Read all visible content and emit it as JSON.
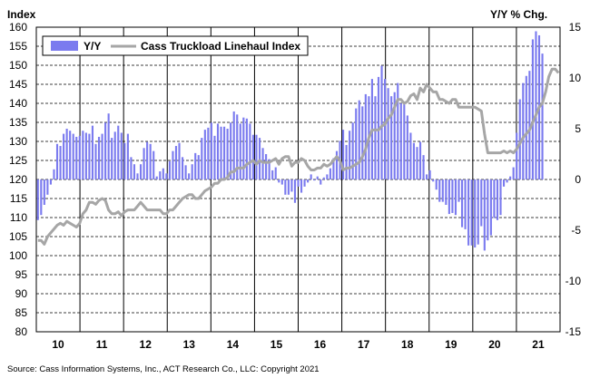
{
  "chart_data": {
    "type": "bar+line",
    "left_axis_title": "Index",
    "right_axis_title": "Y/Y % Chg.",
    "left_axis": {
      "min": 80,
      "max": 160,
      "ticks": [
        "160",
        "155",
        "150",
        "145",
        "140",
        "135",
        "130",
        "125",
        "120",
        "115",
        "110",
        "105",
        "100",
        "95",
        "90",
        "85",
        "80"
      ]
    },
    "right_axis": {
      "min": -15,
      "max": 15,
      "ticks": [
        "15",
        "10",
        "5",
        "0",
        "-5",
        "-10",
        "-15"
      ]
    },
    "x_year_labels": [
      "10",
      "11",
      "12",
      "13",
      "14",
      "15",
      "16",
      "17",
      "18",
      "19",
      "20",
      "21"
    ],
    "grid": true,
    "legend": {
      "placement": "top-left",
      "bar_label": "Y/Y",
      "line_label": "Cass Truckload Linehaul Index"
    },
    "colors": {
      "bars": "#7b7bef",
      "line": "#a6a6a6"
    },
    "source": "Source: Cass Information Systems, Inc., ACT Research Co., LLC: Copyright 2021",
    "series": [
      {
        "name": "Cass Truckload Linehaul Index",
        "axis": "left",
        "values": [
          104,
          104,
          103,
          105,
          106,
          107,
          108,
          108.5,
          108,
          109,
          108.5,
          108,
          107.5,
          108.5,
          111,
          112,
          114,
          114,
          113.5,
          114.5,
          115,
          114.5,
          112,
          111,
          111,
          111.5,
          110.5,
          111.5,
          112,
          112,
          112,
          113,
          114,
          113,
          112,
          112,
          112,
          112,
          112,
          111,
          111,
          112,
          112,
          113,
          114,
          115,
          115.5,
          116,
          116,
          115,
          115,
          116,
          117,
          117.5,
          118,
          119,
          119,
          120,
          120,
          120.5,
          122,
          122,
          123,
          123,
          123,
          124,
          124.5,
          125,
          124,
          125,
          124.5,
          124.5,
          124.5,
          125,
          125.5,
          124,
          125.5,
          126,
          126,
          123.5,
          124.5,
          124.5,
          125.5,
          125,
          123.5,
          122.5,
          122.5,
          123,
          123,
          124,
          123.5,
          124,
          125,
          126,
          125,
          122.5,
          123,
          123,
          123.5,
          124,
          124.5,
          126,
          128,
          131,
          133,
          133,
          133,
          134,
          134.5,
          136,
          137,
          139,
          141,
          141,
          140,
          140.5,
          142,
          142.5,
          141,
          144,
          143,
          145,
          144,
          143,
          143,
          141,
          141,
          140.5,
          140,
          141,
          141,
          139,
          139,
          139,
          139,
          139,
          139,
          138.5,
          138,
          132,
          127,
          127,
          127,
          127,
          127,
          127.5,
          127,
          127.5,
          127,
          128,
          129.5,
          131,
          132,
          133,
          135,
          137,
          139,
          140,
          143,
          147,
          149,
          149,
          148
        ]
      },
      {
        "name": "Y/Y",
        "axis": "right",
        "values": [
          -4,
          -3.5,
          -2.5,
          -1.5,
          -0.5,
          1,
          3.5,
          3.3,
          4.5,
          5,
          4.8,
          4.5,
          4.2,
          4.3,
          4.8,
          4.6,
          4.5,
          5.3,
          3.5,
          4.2,
          4.5,
          5.6,
          6.5,
          4.1,
          4.7,
          5.3,
          4.6,
          3.6,
          4.5,
          2.2,
          1.5,
          0.6,
          1.5,
          3.1,
          3.7,
          3.5,
          2.8,
          0.3,
          0.8,
          1.1,
          0.6,
          1.8,
          2.8,
          3.3,
          3.6,
          2.2,
          1.4,
          0.6,
          1.5,
          2.6,
          2.4,
          4.1,
          4.9,
          5.1,
          5.6,
          4.3,
          5.5,
          5.2,
          5.2,
          5,
          5.6,
          6.7,
          6.4,
          5.5,
          6.1,
          6,
          5.5,
          4.4,
          4.4,
          4.1,
          3.1,
          2.5,
          2,
          0.9,
          1.2,
          -0.3,
          -0.5,
          -1.5,
          -1.5,
          -1.2,
          -2.3,
          -0.7,
          -1.3,
          -0.7,
          -0.3,
          0.5,
          -0.1,
          0.3,
          -0.5,
          0.2,
          0.5,
          1.1,
          2.1,
          2.8,
          3.8,
          4.9,
          3.4,
          4.8,
          5.6,
          7,
          7.8,
          7.2,
          8.4,
          8.2,
          9.9,
          8.2,
          10.1,
          11.2,
          9.9,
          9,
          8.2,
          8.6,
          9.5,
          7.5,
          7.4,
          6.3,
          4.6,
          3.6,
          3.2,
          3.7,
          2.4,
          0.5,
          0.9,
          -0.2,
          -1,
          -2.2,
          -2.2,
          -2.5,
          -3.4,
          -3.3,
          -3.5,
          -2.2,
          -4.7,
          -4.9,
          -6.5,
          -6.5,
          -6.7,
          -6.4,
          -4.6,
          -7,
          -6,
          -5.5,
          -3.8,
          -4,
          -3.5,
          -0.7,
          -0.3,
          0.3,
          1.2,
          4.6,
          7.9,
          9.5,
          10.2,
          10.7,
          13.8,
          14.6,
          14.2,
          12.4
        ]
      }
    ]
  }
}
